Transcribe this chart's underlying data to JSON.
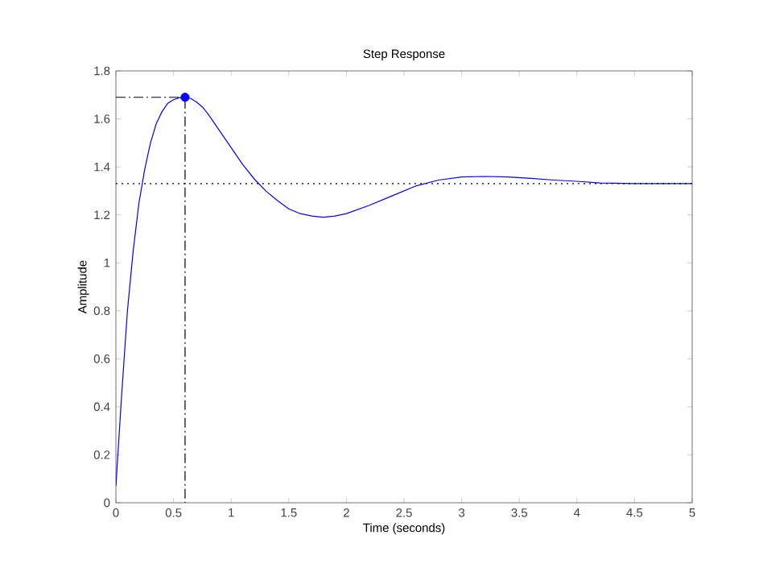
{
  "chart_data": {
    "type": "line",
    "title": "Step Response",
    "xlabel": "Time (seconds)",
    "ylabel": "Amplitude",
    "xlim": [
      0,
      5
    ],
    "ylim": [
      0,
      1.8
    ],
    "xticks": [
      0,
      0.5,
      1,
      1.5,
      2,
      2.5,
      3,
      3.5,
      4,
      4.5,
      5
    ],
    "yticks": [
      0,
      0.2,
      0.4,
      0.6,
      0.8,
      1,
      1.2,
      1.4,
      1.6,
      1.8
    ],
    "grid": false,
    "marker": "none",
    "line_style": "solid",
    "series": [
      {
        "color": "#0000ff",
        "x": [
          0,
          0.05,
          0.1,
          0.15,
          0.2,
          0.25,
          0.3,
          0.35,
          0.4,
          0.45,
          0.5,
          0.55,
          0.6,
          0.65,
          0.7,
          0.75,
          0.8,
          0.9,
          1.0,
          1.1,
          1.2,
          1.3,
          1.4,
          1.5,
          1.6,
          1.7,
          1.8,
          1.9,
          2.0,
          2.2,
          2.4,
          2.6,
          2.8,
          3.0,
          3.2,
          3.4,
          3.6,
          3.8,
          4.0,
          4.2,
          4.5,
          5.0
        ],
        "values": [
          0.07,
          0.45,
          0.8,
          1.05,
          1.25,
          1.39,
          1.5,
          1.58,
          1.63,
          1.665,
          1.68,
          1.688,
          1.69,
          1.685,
          1.67,
          1.65,
          1.62,
          1.55,
          1.48,
          1.41,
          1.35,
          1.3,
          1.26,
          1.225,
          1.205,
          1.195,
          1.19,
          1.195,
          1.205,
          1.24,
          1.28,
          1.32,
          1.345,
          1.358,
          1.36,
          1.358,
          1.352,
          1.345,
          1.34,
          1.333,
          1.33,
          1.33
        ]
      },
      {
        "type": "line",
        "color": "#000000",
        "line_style": "dashed",
        "x": [
          0,
          0.6,
          0.6
        ],
        "values": [
          1.69,
          1.69,
          0
        ]
      },
      {
        "type": "scatter",
        "color": "#0000ff",
        "marker": "circle",
        "x": [
          0.6
        ],
        "values": [
          1.69
        ]
      }
    ],
    "ref_lines": [
      {
        "axis": "y",
        "value": 1.33,
        "color": "#000000",
        "line_style": "dotted"
      }
    ]
  }
}
